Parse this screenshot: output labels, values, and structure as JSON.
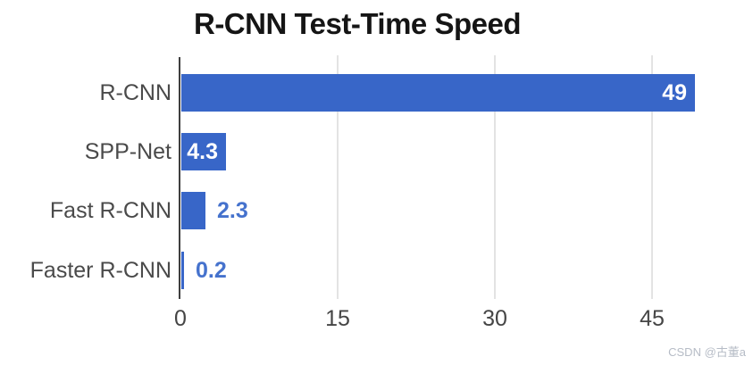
{
  "chart_data": {
    "type": "bar",
    "orientation": "horizontal",
    "title": "R-CNN Test-Time Speed",
    "categories": [
      "R-CNN",
      "SPP-Net",
      "Fast R-CNN",
      "Faster R-CNN"
    ],
    "values": [
      49,
      4.3,
      2.3,
      0.2
    ],
    "value_labels": [
      "49",
      "4.3",
      "2.3",
      "0.2"
    ],
    "x_ticks": [
      0,
      15,
      30,
      45
    ],
    "xlim": [
      0,
      53
    ],
    "grid": true,
    "legend": false,
    "bar_color": "#3866c8",
    "value_label_color_inside": "#ffffff",
    "value_label_color_outside": "#4572cd",
    "gridline_color": "#e3e3e3",
    "axis_color": "#3f3f3f"
  },
  "watermark": "CSDN @古董a"
}
